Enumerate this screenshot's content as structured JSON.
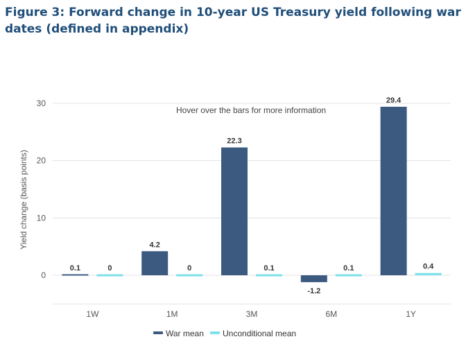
{
  "figure": {
    "title": "Figure 3: Forward change in 10-year US Treasury yield following war dates (defined in appendix)"
  },
  "chart_data": {
    "type": "bar",
    "title": "Figure 3: Forward change in 10-year US Treasury yield following war dates (defined in appendix)",
    "annotation": "Hover over the bars for more information",
    "xlabel": "",
    "ylabel": "Yield change (basis points)",
    "categories": [
      "1W",
      "1M",
      "3M",
      "6M",
      "1Y"
    ],
    "series": [
      {
        "name": "War mean",
        "color": "#3c5a80",
        "values": [
          0.1,
          4.2,
          22.3,
          -1.2,
          29.4
        ]
      },
      {
        "name": "Unconditional mean",
        "color": "#7ee0e8",
        "values": [
          0,
          0,
          0.1,
          0.1,
          0.4
        ]
      }
    ],
    "yticks": [
      0,
      10,
      20,
      30
    ],
    "ylim": [
      -5,
      31
    ],
    "grid": true,
    "legend": "bottom"
  }
}
